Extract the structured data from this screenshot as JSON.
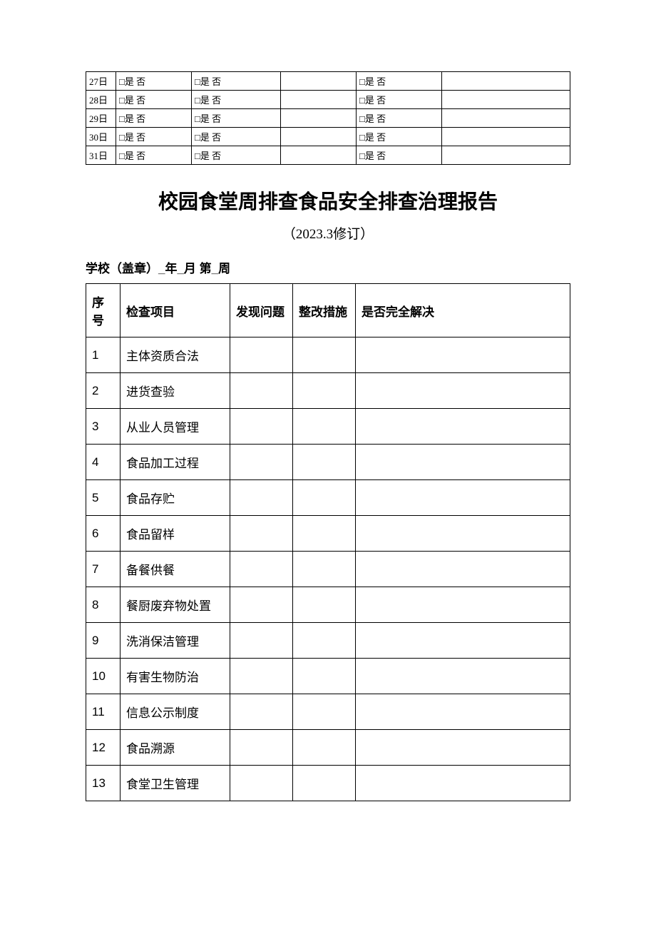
{
  "topTable": {
    "checkbox_label": "□是 否",
    "rows": [
      {
        "date": "27日"
      },
      {
        "date": "28日"
      },
      {
        "date": "29日"
      },
      {
        "date": "30日"
      },
      {
        "date": "31日"
      }
    ]
  },
  "title": "校园食堂周排查食品安全排查治理报告",
  "subtitle": "（2023.3修订）",
  "headerLine": "学校（盖章）_年_月 第_周",
  "mainTable": {
    "headers": {
      "seq": "序号",
      "item": "检查项目",
      "issue": "发现问题",
      "measure": "整改措施",
      "solved": "是否完全解决"
    },
    "rows": [
      {
        "seq": "1",
        "item": "主体资质合法"
      },
      {
        "seq": "2",
        "item": "进货查验"
      },
      {
        "seq": "3",
        "item": "从业人员管理"
      },
      {
        "seq": "4",
        "item": "食品加工过程"
      },
      {
        "seq": "5",
        "item": "食品存贮"
      },
      {
        "seq": "6",
        "item": "食品留样"
      },
      {
        "seq": "7",
        "item": "备餐供餐"
      },
      {
        "seq": "8",
        "item": "餐厨废弃物处置"
      },
      {
        "seq": "9",
        "item": "洗消保洁管理"
      },
      {
        "seq": "10",
        "item": "有害生物防治"
      },
      {
        "seq": "11",
        "item": "信息公示制度"
      },
      {
        "seq": "12",
        "item": "食品溯源"
      },
      {
        "seq": "13",
        "item": "食堂卫生管理"
      }
    ]
  },
  "colors": {
    "border": "#000000",
    "background": "#ffffff",
    "text": "#000000"
  }
}
